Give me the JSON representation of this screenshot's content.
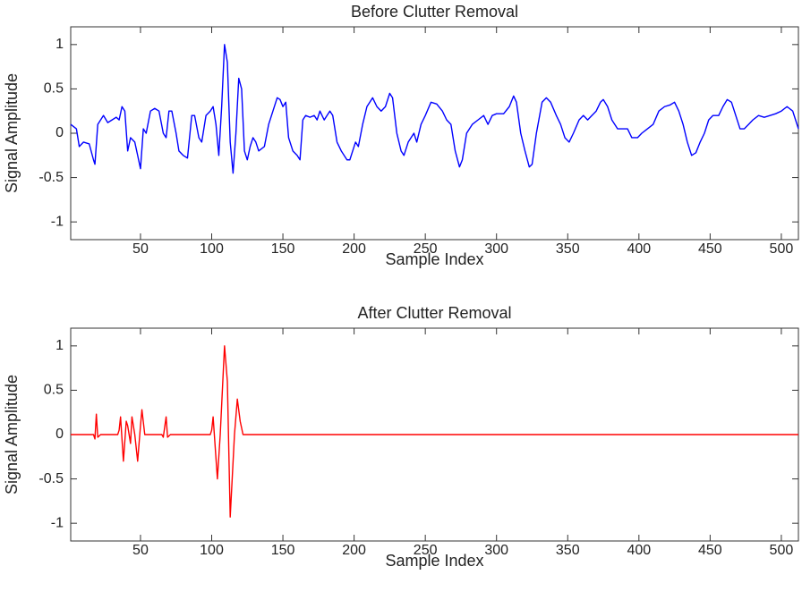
{
  "chart_data": [
    {
      "type": "line",
      "title": "Before Clutter Removal",
      "x_label": "Sample Index",
      "y_label": "Signal Amplitude",
      "color": "#0000ff",
      "xlim": [
        1,
        512
      ],
      "ylim": [
        -1.2,
        1.2
      ],
      "xticks": [
        50,
        100,
        150,
        200,
        250,
        300,
        350,
        400,
        450,
        500
      ],
      "yticks": [
        -1,
        -0.5,
        0,
        0.5,
        1
      ],
      "x": [
        1,
        5,
        7,
        10,
        14,
        17,
        18,
        20,
        22,
        24,
        27,
        30,
        33,
        35,
        37,
        39,
        41,
        43,
        46,
        48,
        50,
        52,
        54,
        57,
        60,
        63,
        66,
        68,
        70,
        72,
        75,
        77,
        80,
        83,
        86,
        88,
        91,
        93,
        96,
        99,
        101,
        103,
        105,
        107,
        109,
        111,
        113,
        115,
        117,
        119,
        121,
        123,
        125,
        127,
        129,
        131,
        133,
        137,
        140,
        143,
        146,
        148,
        150,
        152,
        154,
        157,
        160,
        162,
        164,
        166,
        169,
        172,
        174,
        176,
        179,
        181,
        183,
        185,
        188,
        191,
        195,
        197,
        199,
        201,
        203,
        206,
        209,
        213,
        216,
        219,
        222,
        225,
        227,
        230,
        233,
        235,
        238,
        242,
        244,
        247,
        250,
        254,
        258,
        262,
        265,
        268,
        271,
        274,
        276,
        279,
        283,
        287,
        291,
        294,
        297,
        300,
        305,
        309,
        312,
        314,
        317,
        320,
        323,
        325,
        328,
        332,
        335,
        338,
        342,
        345,
        348,
        351,
        354,
        358,
        361,
        364,
        367,
        370,
        373,
        375,
        378,
        381,
        385,
        388,
        392,
        395,
        399,
        402,
        406,
        410,
        414,
        418,
        422,
        425,
        428,
        431,
        434,
        437,
        440,
        443,
        446,
        449,
        452,
        456,
        459,
        462,
        465,
        468,
        471,
        474,
        477,
        480,
        484,
        488,
        492,
        496,
        500,
        504,
        508,
        512
      ],
      "values": [
        0.1,
        0.05,
        -0.15,
        -0.1,
        -0.12,
        -0.3,
        -0.35,
        0.1,
        0.15,
        0.2,
        0.12,
        0.15,
        0.18,
        0.15,
        0.3,
        0.25,
        -0.2,
        -0.05,
        -0.1,
        -0.25,
        -0.4,
        0.05,
        0,
        0.25,
        0.28,
        0.25,
        0,
        -0.05,
        0.25,
        0.25,
        0,
        -0.2,
        -0.25,
        -0.28,
        0.2,
        0.2,
        -0.05,
        -0.1,
        0.2,
        0.25,
        0.3,
        0.1,
        -0.25,
        0.3,
        1,
        0.8,
        -0.1,
        -0.45,
        0,
        0.62,
        0.5,
        -0.2,
        -0.3,
        -0.15,
        -0.05,
        -0.1,
        -0.2,
        -0.15,
        0.1,
        0.25,
        0.4,
        0.38,
        0.3,
        0.35,
        -0.05,
        -0.2,
        -0.25,
        -0.3,
        0.15,
        0.2,
        0.18,
        0.2,
        0.15,
        0.25,
        0.15,
        0.2,
        0.25,
        0.2,
        -0.1,
        -0.2,
        -0.3,
        -0.3,
        -0.2,
        -0.1,
        -0.15,
        0.1,
        0.3,
        0.4,
        0.3,
        0.25,
        0.3,
        0.45,
        0.4,
        0,
        -0.2,
        -0.25,
        -0.1,
        0,
        -0.1,
        0.1,
        0.2,
        0.35,
        0.33,
        0.25,
        0.15,
        0.1,
        -0.2,
        -0.38,
        -0.3,
        0,
        0.1,
        0.15,
        0.2,
        0.1,
        0.2,
        0.22,
        0.22,
        0.3,
        0.42,
        0.35,
        0,
        -0.2,
        -0.38,
        -0.35,
        0,
        0.35,
        0.4,
        0.35,
        0.2,
        0.1,
        -0.05,
        -0.1,
        0,
        0.15,
        0.2,
        0.15,
        0.2,
        0.25,
        0.35,
        0.38,
        0.3,
        0.15,
        0.05,
        0.05,
        0.05,
        -0.05,
        -0.05,
        0,
        0.05,
        0.1,
        0.25,
        0.3,
        0.32,
        0.35,
        0.25,
        0.1,
        -0.1,
        -0.25,
        -0.22,
        -0.1,
        0,
        0.15,
        0.2,
        0.2,
        0.3,
        0.38,
        0.35,
        0.2,
        0.05,
        0.05,
        0.1,
        0.15,
        0.2,
        0.18,
        0.2,
        0.22,
        0.25,
        0.3,
        0.25,
        0.05
      ]
    },
    {
      "type": "line",
      "title": "After Clutter Removal",
      "x_label": "Sample Index",
      "y_label": "Signal Amplitude",
      "color": "#ff0000",
      "xlim": [
        1,
        512
      ],
      "ylim": [
        -1.2,
        1.2
      ],
      "xticks": [
        50,
        100,
        150,
        200,
        250,
        300,
        350,
        400,
        450,
        500
      ],
      "yticks": [
        -1,
        -0.5,
        0,
        0.5,
        1
      ],
      "x": [
        1,
        16,
        17,
        18,
        19,
        20,
        22,
        24,
        34,
        35,
        36,
        38,
        40,
        41,
        43,
        44,
        46,
        48,
        50,
        51,
        53,
        55,
        65,
        66,
        68,
        69,
        71,
        99,
        100,
        101,
        104,
        106,
        109,
        111,
        113,
        116,
        118,
        120,
        122,
        512
      ],
      "values": [
        0,
        0,
        0,
        -0.05,
        0.23,
        -0.03,
        0,
        0,
        0,
        0.05,
        0.2,
        -0.3,
        0.15,
        0.1,
        -0.1,
        0.2,
        0,
        -0.3,
        0.1,
        0.28,
        0,
        0,
        0,
        -0.03,
        0.2,
        -0.03,
        0,
        0,
        0.05,
        0.2,
        -0.5,
        0,
        1,
        0.6,
        -0.93,
        0,
        0.4,
        0.15,
        0,
        0
      ]
    }
  ]
}
